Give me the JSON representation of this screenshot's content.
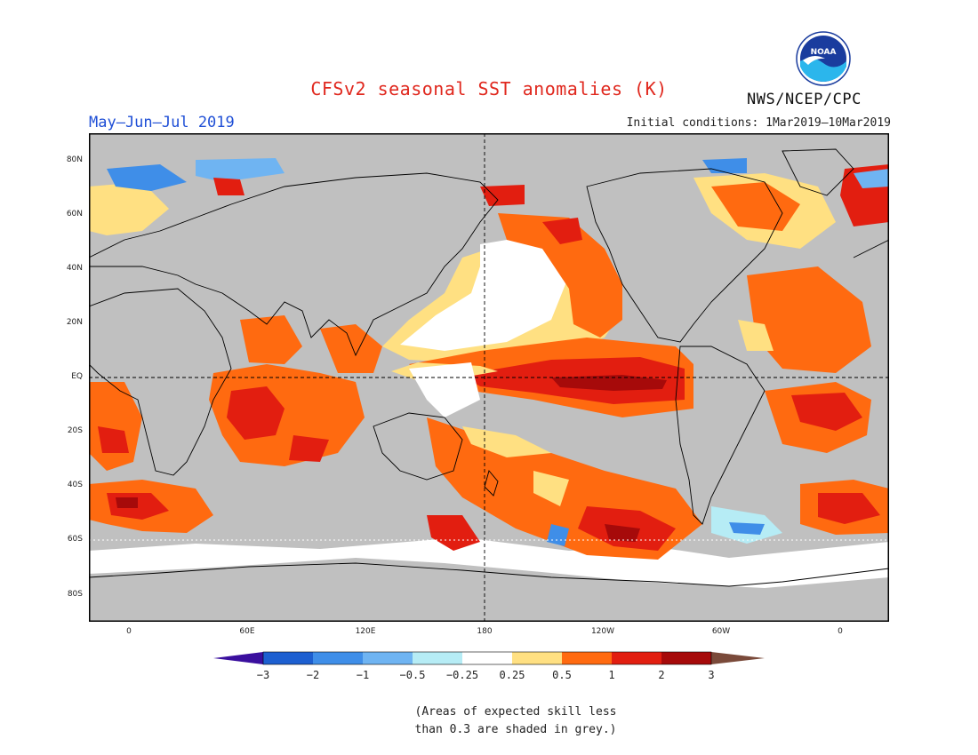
{
  "header": {
    "title": "CFSv2 seasonal SST anomalies (K)",
    "period": "May–Jun–Jul 2019",
    "initial_conditions": "Initial conditions: 1Mar2019–10Mar2019",
    "agency": "NWS/NCEP/CPC",
    "logo_text": "NOAA"
  },
  "map": {
    "projection": "equirectangular",
    "grey_color": "#c0c0c0",
    "land_outline_color": "#000000",
    "lat_labels": [
      {
        "text": "80N",
        "lat": 80
      },
      {
        "text": "60N",
        "lat": 60
      },
      {
        "text": "40N",
        "lat": 40
      },
      {
        "text": "20N",
        "lat": 20
      },
      {
        "text": "EQ",
        "lat": 0
      },
      {
        "text": "20S",
        "lat": -20
      },
      {
        "text": "40S",
        "lat": -40
      },
      {
        "text": "60S",
        "lat": -60
      },
      {
        "text": "80S",
        "lat": -80
      }
    ],
    "lon_labels": [
      {
        "text": "0",
        "lon": 0
      },
      {
        "text": "60E",
        "lon": 60
      },
      {
        "text": "120E",
        "lon": 120
      },
      {
        "text": "180",
        "lon": 180
      },
      {
        "text": "120W",
        "lon": 240
      },
      {
        "text": "60W",
        "lon": 300
      },
      {
        "text": "0",
        "lon": 360
      }
    ],
    "dashed_lines": [
      "equator",
      "dateline"
    ]
  },
  "colorbar": {
    "levels": [
      "−3",
      "−2",
      "−1",
      "−0.5",
      "−0.25",
      "0.25",
      "0.5",
      "1",
      "2",
      "3"
    ],
    "colors": [
      "#3a0f9e",
      "#1d5fd0",
      "#3f8ee8",
      "#6fb4f2",
      "#b6ecf5",
      "#ffffff",
      "#ffe082",
      "#ff6a10",
      "#e21e10",
      "#a60a0a",
      "#7a4a3a"
    ]
  },
  "note": {
    "line1": "(Areas of expected skill less",
    "line2": "than 0.3 are shaded in grey.)"
  }
}
